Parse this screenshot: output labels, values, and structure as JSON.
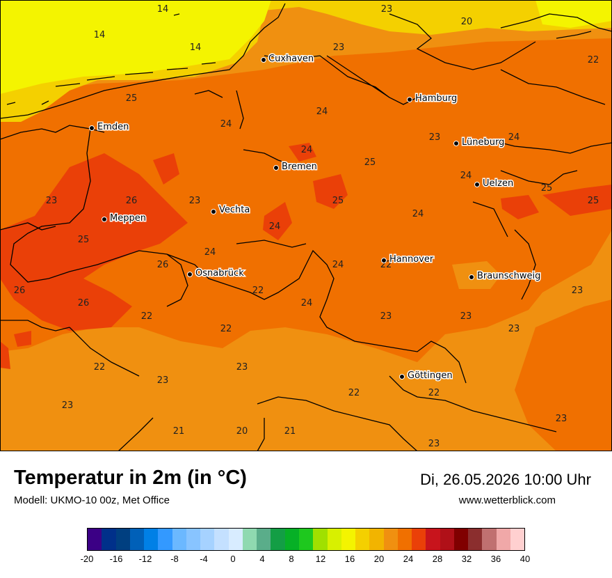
{
  "map": {
    "cities": [
      {
        "name": "Cuxhaven"
      },
      {
        "name": "Hamburg"
      },
      {
        "name": "Emden"
      },
      {
        "name": "Lüneburg"
      },
      {
        "name": "Bremen"
      },
      {
        "name": "Uelzen"
      },
      {
        "name": "Vechta"
      },
      {
        "name": "Meppen"
      },
      {
        "name": "Hannover"
      },
      {
        "name": "Osnabrück"
      },
      {
        "name": "Braunschweig"
      },
      {
        "name": "Göttingen"
      }
    ],
    "values": [
      "14",
      "14",
      "14",
      "23",
      "20",
      "23",
      "22",
      "25",
      "24",
      "24",
      "24",
      "23",
      "24",
      "25",
      "24",
      "23",
      "26",
      "23",
      "25",
      "25",
      "24",
      "25",
      "25",
      "24",
      "26",
      "24",
      "22",
      "24",
      "26",
      "22",
      "23",
      "26",
      "22",
      "24",
      "23",
      "22",
      "23",
      "23",
      "22",
      "23",
      "23",
      "22",
      "23",
      "22",
      "23",
      "21",
      "20",
      "21",
      "23"
    ]
  },
  "footer": {
    "title": "Temperatur in 2m (in °C)",
    "model": "Modell: UKMO-10 00z, Met Office",
    "datetime": "Di, 26.05.2026 10:00 Uhr",
    "website": "www.wetterblick.com"
  },
  "scale": {
    "ticks": [
      "-20",
      "-16",
      "-12",
      "-8",
      "-4",
      "0",
      "4",
      "8",
      "12",
      "16",
      "20",
      "24",
      "28",
      "32",
      "36",
      "40"
    ],
    "colors": [
      "#3b0085",
      "#00308a",
      "#003f80",
      "#0060b8",
      "#0080e6",
      "#3399ff",
      "#6bb8ff",
      "#88c4ff",
      "#a6d2ff",
      "#c4e0ff",
      "#d8ecff",
      "#8fd9b0",
      "#5aad8a",
      "#139e45",
      "#06b026",
      "#1ec81e",
      "#a0e000",
      "#d8f000",
      "#f4f400",
      "#f4d000",
      "#f2b400",
      "#f09010",
      "#f07000",
      "#ea4008",
      "#c8141c",
      "#b01018",
      "#800000",
      "#8b2e2e",
      "#c07070",
      "#f0a8a8",
      "#ffd0d0"
    ]
  },
  "colors": {
    "t14": "#f4f400",
    "t18": "#f4d000",
    "t22": "#f09010",
    "t24": "#f07000",
    "t26": "#ea4008"
  }
}
